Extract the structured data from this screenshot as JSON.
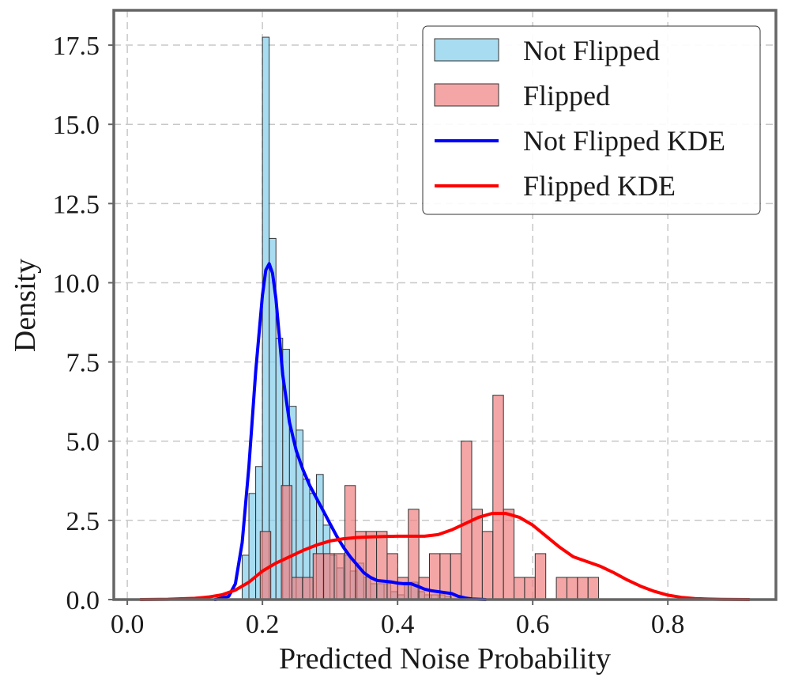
{
  "chart_data": {
    "type": "histogram",
    "xlabel": "Predicted Noise Probability",
    "ylabel": "Density",
    "xlim": [
      -0.02,
      0.96
    ],
    "ylim": [
      0,
      18.6
    ],
    "xticks": [
      0.0,
      0.2,
      0.4,
      0.6,
      0.8
    ],
    "xtick_labels": [
      "0.0",
      "0.2",
      "0.4",
      "0.6",
      "0.8"
    ],
    "yticks": [
      0,
      2.5,
      5,
      7.5,
      10,
      12.5,
      15,
      17.5
    ],
    "ytick_labels": [
      "0.0",
      "2.5",
      "5.0",
      "7.5",
      "10.0",
      "12.5",
      "15.0",
      "17.5"
    ],
    "grid": true,
    "legend_position": "top-right",
    "legend": [
      {
        "label": "Not Flipped",
        "kind": "patch",
        "color": "#87ceeb"
      },
      {
        "label": "Flipped",
        "kind": "patch",
        "color": "#f08080"
      },
      {
        "label": "Not Flipped KDE",
        "kind": "line",
        "color": "#0000ff"
      },
      {
        "label": "Flipped KDE",
        "kind": "line",
        "color": "#ff0000"
      }
    ],
    "histograms": [
      {
        "name": "Not Flipped",
        "color": "#87ceeb",
        "bin_width": 0.01,
        "bins": [
          [
            0.17,
            1.4
          ],
          [
            0.18,
            3.35
          ],
          [
            0.19,
            4.2
          ],
          [
            0.2,
            17.75
          ],
          [
            0.21,
            11.4
          ],
          [
            0.22,
            8.25
          ],
          [
            0.23,
            7.9
          ],
          [
            0.24,
            6.1
          ],
          [
            0.25,
            5.35
          ],
          [
            0.26,
            3.8
          ],
          [
            0.27,
            3.35
          ],
          [
            0.28,
            3.95
          ],
          [
            0.29,
            2.35
          ],
          [
            0.3,
            1.4
          ],
          [
            0.31,
            1.0
          ],
          [
            0.32,
            1.4
          ],
          [
            0.33,
            0.9
          ],
          [
            0.34,
            1.15
          ],
          [
            0.35,
            0.7
          ],
          [
            0.36,
            0.5
          ],
          [
            0.37,
            0.5
          ],
          [
            0.38,
            0.5
          ],
          [
            0.39,
            0.25
          ],
          [
            0.4,
            0.15
          ],
          [
            0.41,
            0.55
          ],
          [
            0.42,
            0.55
          ],
          [
            0.43,
            0.25
          ],
          [
            0.44,
            0.15
          ],
          [
            0.45,
            0.15
          ],
          [
            0.46,
            0.15
          ],
          [
            0.47,
            0.1
          ]
        ]
      },
      {
        "name": "Flipped",
        "color": "#f08080",
        "bin_width": 0.01565,
        "bins": [
          [
            0.1967,
            2.15
          ],
          [
            0.2124,
            0.0
          ],
          [
            0.228,
            3.6
          ],
          [
            0.2437,
            0.7
          ],
          [
            0.2593,
            0.7
          ],
          [
            0.275,
            1.45
          ],
          [
            0.2906,
            1.45
          ],
          [
            0.3063,
            1.45
          ],
          [
            0.322,
            3.6
          ],
          [
            0.3376,
            2.15
          ],
          [
            0.3533,
            2.15
          ],
          [
            0.3689,
            2.15
          ],
          [
            0.3846,
            1.45
          ],
          [
            0.4002,
            0.7
          ],
          [
            0.4159,
            2.85
          ],
          [
            0.4315,
            0.7
          ],
          [
            0.4472,
            1.45
          ],
          [
            0.4628,
            1.45
          ],
          [
            0.4785,
            1.45
          ],
          [
            0.4941,
            5.0
          ],
          [
            0.5098,
            2.85
          ],
          [
            0.5254,
            2.15
          ],
          [
            0.5411,
            6.45
          ],
          [
            0.5567,
            2.85
          ],
          [
            0.5724,
            0.7
          ],
          [
            0.588,
            0.7
          ],
          [
            0.6037,
            1.45
          ],
          [
            0.6193,
            0.0
          ],
          [
            0.635,
            0.7
          ],
          [
            0.6506,
            0.7
          ],
          [
            0.6663,
            0.7
          ],
          [
            0.6819,
            0.7
          ]
        ]
      }
    ],
    "series": [
      {
        "name": "Not Flipped KDE",
        "color": "#0000ff",
        "type": "line",
        "x": [
          0.13,
          0.15,
          0.16,
          0.17,
          0.18,
          0.19,
          0.2,
          0.205,
          0.21,
          0.215,
          0.22,
          0.225,
          0.23,
          0.24,
          0.25,
          0.26,
          0.27,
          0.28,
          0.29,
          0.3,
          0.31,
          0.32,
          0.33,
          0.34,
          0.35,
          0.36,
          0.37,
          0.38,
          0.39,
          0.4,
          0.41,
          0.42,
          0.43,
          0.44,
          0.45,
          0.46,
          0.47,
          0.48,
          0.49,
          0.5,
          0.51,
          0.52,
          0.53
        ],
        "y": [
          0.0,
          0.1,
          0.5,
          1.8,
          4.2,
          7.2,
          9.6,
          10.4,
          10.6,
          10.3,
          9.5,
          8.3,
          7.1,
          5.6,
          4.7,
          4.1,
          3.6,
          3.2,
          2.8,
          2.4,
          2.0,
          1.65,
          1.35,
          1.1,
          0.85,
          0.7,
          0.6,
          0.58,
          0.56,
          0.52,
          0.5,
          0.5,
          0.42,
          0.33,
          0.28,
          0.25,
          0.22,
          0.19,
          0.1,
          0.05,
          0.02,
          0.01,
          0.0
        ]
      },
      {
        "name": "Flipped KDE",
        "color": "#ff0000",
        "type": "line",
        "x": [
          0.02,
          0.06,
          0.1,
          0.12,
          0.14,
          0.16,
          0.18,
          0.2,
          0.22,
          0.24,
          0.26,
          0.28,
          0.3,
          0.32,
          0.34,
          0.36,
          0.38,
          0.4,
          0.42,
          0.44,
          0.46,
          0.48,
          0.5,
          0.52,
          0.54,
          0.56,
          0.58,
          0.6,
          0.62,
          0.64,
          0.66,
          0.68,
          0.7,
          0.72,
          0.74,
          0.76,
          0.78,
          0.8,
          0.82,
          0.84,
          0.86,
          0.88,
          0.9,
          0.92
        ],
        "y": [
          0.0,
          0.01,
          0.04,
          0.08,
          0.15,
          0.3,
          0.55,
          0.9,
          1.15,
          1.35,
          1.55,
          1.72,
          1.85,
          1.92,
          1.96,
          1.98,
          1.99,
          2.0,
          2.0,
          2.0,
          2.05,
          2.2,
          2.4,
          2.6,
          2.72,
          2.72,
          2.6,
          2.35,
          2.0,
          1.65,
          1.35,
          1.2,
          1.05,
          0.85,
          0.62,
          0.42,
          0.26,
          0.14,
          0.07,
          0.03,
          0.015,
          0.007,
          0.003,
          0.0
        ]
      }
    ]
  }
}
